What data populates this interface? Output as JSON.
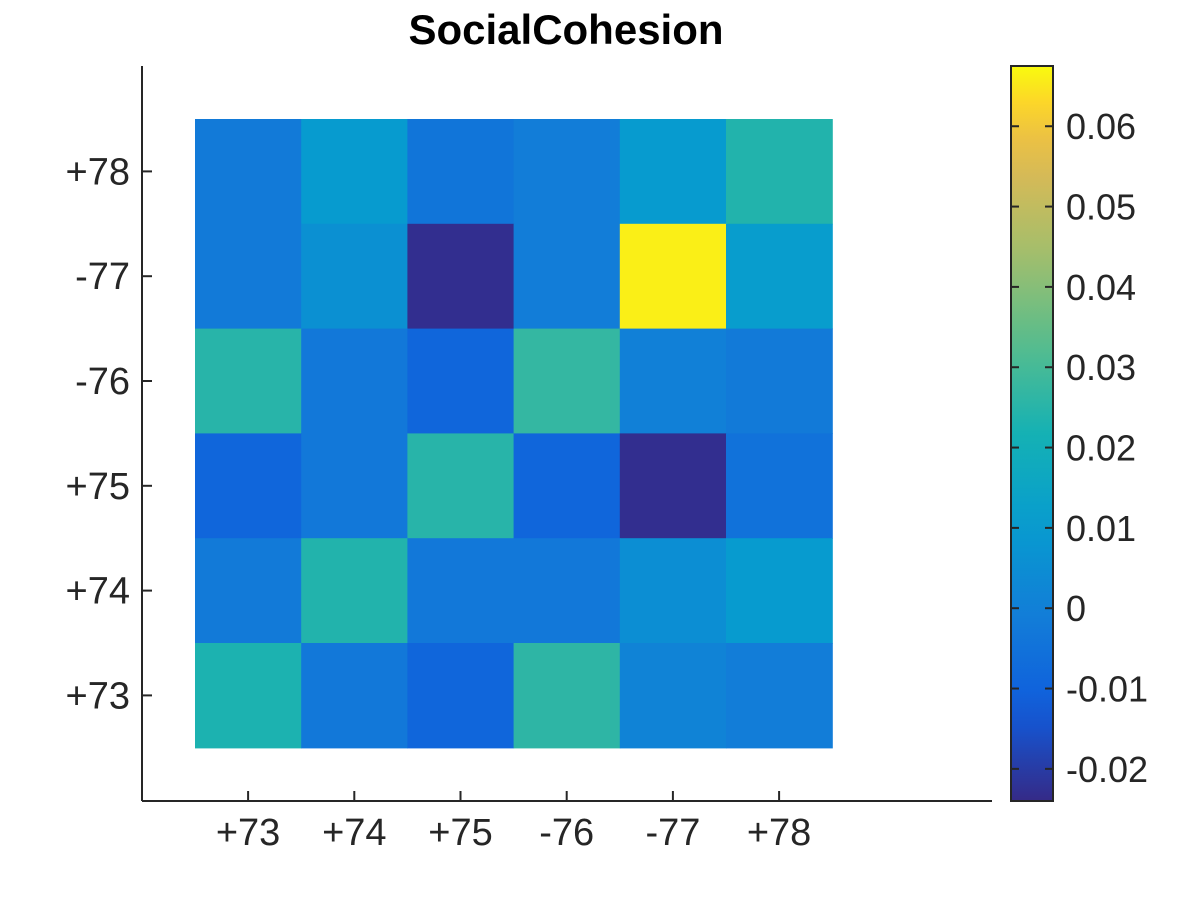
{
  "chart_data": {
    "type": "heatmap",
    "title": "SocialCohesion",
    "xlabel": "",
    "ylabel": "",
    "x_categories": [
      "+73",
      "+74",
      "+75",
      "-76",
      "-77",
      "+78"
    ],
    "y_categories": [
      "+78",
      "-77",
      "-76",
      "+75",
      "+74",
      "+73"
    ],
    "values": [
      [
        -0.002,
        0.01,
        -0.004,
        -0.001,
        0.01,
        0.024
      ],
      [
        -0.002,
        0.006,
        -0.023,
        -0.001,
        0.066,
        0.011
      ],
      [
        0.025,
        -0.003,
        -0.009,
        0.027,
        0.0,
        -0.002
      ],
      [
        -0.009,
        -0.003,
        0.025,
        -0.009,
        -0.023,
        -0.005
      ],
      [
        -0.002,
        0.024,
        -0.003,
        -0.003,
        0.005,
        0.01
      ],
      [
        0.023,
        -0.003,
        -0.009,
        0.026,
        0.001,
        -0.001
      ]
    ],
    "colorbar": {
      "range": [
        -0.024,
        0.0675
      ],
      "ticks": [
        -0.02,
        -0.01,
        0,
        0.01,
        0.02,
        0.03,
        0.04,
        0.05,
        0.06
      ],
      "tick_labels": [
        "-0.02",
        "-0.01",
        "0",
        "0.01",
        "0.02",
        "0.03",
        "0.04",
        "0.05",
        "0.06"
      ],
      "colormap": "parula"
    },
    "grid": false
  }
}
